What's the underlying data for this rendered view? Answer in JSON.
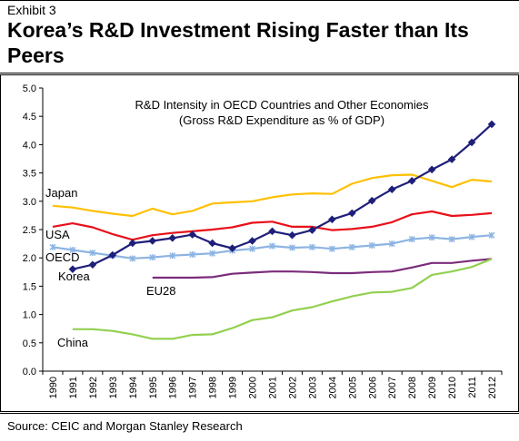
{
  "header": {
    "exhibit": "Exhibit 3",
    "title": "Korea’s R&D Investment Rising Faster than Its Peers"
  },
  "footer": {
    "source": "Source: CEIC and Morgan Stanley Research"
  },
  "chart_data": {
    "type": "line",
    "title": "R&D Intensity in OECD Countries and Other Economies",
    "subtitle": "(Gross R&D Expenditure as % of GDP)",
    "xlabel": "",
    "ylabel": "",
    "x": [
      1990,
      1991,
      1992,
      1993,
      1994,
      1995,
      1996,
      1997,
      1998,
      1999,
      2000,
      2001,
      2002,
      2003,
      2004,
      2005,
      2006,
      2007,
      2008,
      2009,
      2010,
      2011,
      2012
    ],
    "ylim": [
      0,
      5
    ],
    "yticks": [
      "0.0",
      "0.5",
      "1.0",
      "1.5",
      "2.0",
      "2.5",
      "3.0",
      "3.5",
      "4.0",
      "4.5",
      "5.0"
    ],
    "grid": false,
    "legend": "inline labels",
    "series": [
      {
        "name": "Japan",
        "color": "#FFC000",
        "marker": "none",
        "values": [
          2.92,
          2.89,
          2.83,
          2.78,
          2.74,
          2.87,
          2.77,
          2.83,
          2.96,
          2.98,
          3.0,
          3.07,
          3.12,
          3.14,
          3.13,
          3.31,
          3.41,
          3.46,
          3.47,
          3.36,
          3.25,
          3.38,
          3.35
        ]
      },
      {
        "name": "USA",
        "color": "#E8101A",
        "marker": "none",
        "values": [
          2.55,
          2.61,
          2.54,
          2.42,
          2.32,
          2.4,
          2.44,
          2.47,
          2.5,
          2.54,
          2.62,
          2.64,
          2.55,
          2.55,
          2.49,
          2.51,
          2.55,
          2.63,
          2.77,
          2.82,
          2.74,
          2.76,
          2.79
        ]
      },
      {
        "name": "OECD",
        "color": "#8DB4E2",
        "marker": "x",
        "values": [
          2.19,
          2.14,
          2.09,
          2.04,
          1.99,
          2.01,
          2.04,
          2.06,
          2.08,
          2.13,
          2.16,
          2.21,
          2.18,
          2.19,
          2.16,
          2.19,
          2.22,
          2.25,
          2.33,
          2.36,
          2.33,
          2.37,
          2.4
        ]
      },
      {
        "name": "Korea",
        "color": "#1F1F7A",
        "marker": "diamond",
        "values": [
          null,
          1.8,
          1.88,
          2.05,
          2.26,
          2.3,
          2.35,
          2.41,
          2.26,
          2.17,
          2.3,
          2.47,
          2.4,
          2.49,
          2.68,
          2.79,
          3.01,
          3.21,
          3.36,
          3.56,
          3.74,
          4.04,
          4.36
        ]
      },
      {
        "name": "EU28",
        "color": "#7B2C7B",
        "marker": "none",
        "values": [
          null,
          null,
          null,
          null,
          null,
          1.65,
          1.65,
          1.65,
          1.66,
          1.72,
          1.74,
          1.76,
          1.76,
          1.75,
          1.73,
          1.73,
          1.75,
          1.76,
          1.83,
          1.91,
          1.91,
          1.95,
          1.98
        ]
      },
      {
        "name": "China",
        "color": "#92D050",
        "marker": "none",
        "values": [
          null,
          0.74,
          0.74,
          0.71,
          0.65,
          0.57,
          0.57,
          0.64,
          0.65,
          0.76,
          0.9,
          0.95,
          1.07,
          1.13,
          1.23,
          1.32,
          1.39,
          1.4,
          1.47,
          1.7,
          1.76,
          1.84,
          1.98
        ]
      }
    ]
  }
}
